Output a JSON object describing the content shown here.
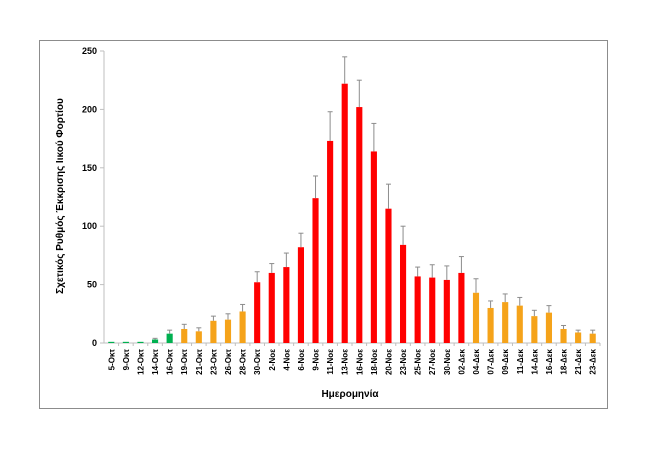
{
  "chart_data": {
    "type": "bar",
    "title": "",
    "xlabel": "Ημερομηνία",
    "ylabel": "Σχετικός Ρυθμός Έκκρισης Ιικού Φορτίου",
    "ylim": [
      0,
      250
    ],
    "yticks": [
      0,
      50,
      100,
      150,
      200,
      250
    ],
    "grid": false,
    "legend": "none",
    "error_bars": true,
    "colors": {
      "green": "#00b050",
      "orange": "#f5a31a",
      "red": "#ff0000",
      "errorbar": "#8c8c8c",
      "axis": "#bfbfbf"
    },
    "categories": [
      "5-Οκτ",
      "9-Οκτ",
      "12-Οκτ",
      "14-Οκτ",
      "16-Οκτ",
      "19-Οκτ",
      "21-Οκτ",
      "23-Οκτ",
      "26-Οκτ",
      "28-Οκτ",
      "30-Οκτ",
      "2-Νοε",
      "4-Νοε",
      "6-Νοε",
      "9-Νοε",
      "11-Νοε",
      "13-Νοε",
      "16-Νοε",
      "18-Νοε",
      "20-Νοε",
      "23-Νοε",
      "25-Νοε",
      "27-Νοε",
      "30-Νοε",
      "02-Δεκ",
      "04-Δεκ",
      "07-Δεκ",
      "09-Δεκ",
      "11-Δεκ",
      "14-Δεκ",
      "16-Δεκ",
      "18-Δεκ",
      "21-Δεκ",
      "23-Δεκ"
    ],
    "values": [
      1,
      1,
      1,
      3,
      8,
      12,
      10,
      19,
      20,
      27,
      52,
      60,
      65,
      82,
      124,
      173,
      222,
      202,
      164,
      115,
      84,
      57,
      56,
      54,
      60,
      43,
      30,
      35,
      32,
      23,
      26,
      12,
      9,
      8
    ],
    "errors": [
      0,
      0,
      0,
      1,
      3,
      4,
      3,
      4,
      5,
      6,
      9,
      8,
      12,
      12,
      19,
      25,
      23,
      23,
      24,
      21,
      16,
      8,
      11,
      12,
      14,
      12,
      6,
      7,
      7,
      5,
      6,
      3,
      2,
      3
    ],
    "bar_colors": [
      "green",
      "green",
      "green",
      "green",
      "green",
      "orange",
      "orange",
      "orange",
      "orange",
      "orange",
      "red",
      "red",
      "red",
      "red",
      "red",
      "red",
      "red",
      "red",
      "red",
      "red",
      "red",
      "red",
      "red",
      "red",
      "red",
      "orange",
      "orange",
      "orange",
      "orange",
      "orange",
      "orange",
      "orange",
      "orange",
      "orange"
    ]
  }
}
